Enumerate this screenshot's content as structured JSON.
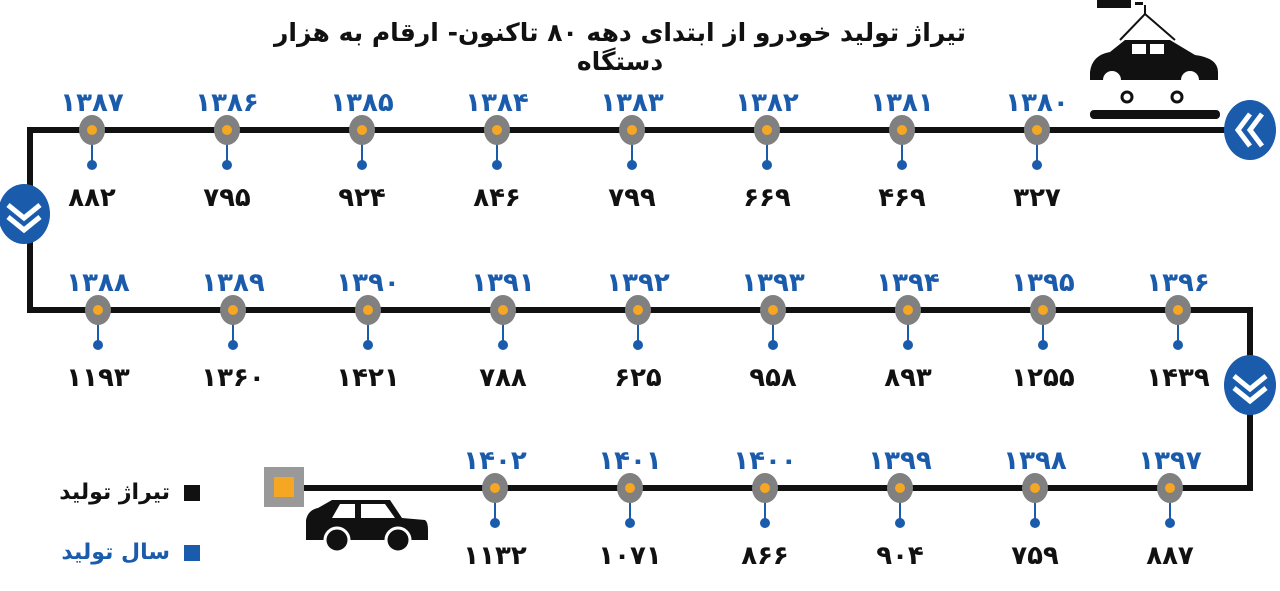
{
  "title": "تیراژ تولید خودرو از ابتدای دهه ۸۰ تاکنون- ارقام به هزار دستگاه",
  "legend": {
    "items": [
      {
        "label": "تیراژ تولید",
        "color": "#111111"
      },
      {
        "label": "سال تولید",
        "color": "#1a5bab"
      }
    ]
  },
  "colors": {
    "line": "#111111",
    "node_ring": "#808080",
    "node_center": "#f5a623",
    "stem": "#1a5bab",
    "chevron": "#1a5bab"
  },
  "icons": [
    "car-assembly-icon",
    "car-icon",
    "chevron-left-icon",
    "chevron-down-icon",
    "end-marker-icon"
  ],
  "chart_data": {
    "type": "timeline",
    "title": "تیراژ تولید خودرو از ابتدای دهه ۸۰ تاکنون- ارقام به هزار دستگاه",
    "unit": "هزار دستگاه",
    "years": [
      1380,
      1381,
      1382,
      1383,
      1384,
      1385,
      1386,
      1387,
      1388,
      1389,
      1390,
      1391,
      1392,
      1393,
      1394,
      1395,
      1396,
      1397,
      1398,
      1399,
      1400,
      1401,
      1402
    ],
    "year_labels": [
      "۱۳۸۰",
      "۱۳۸۱",
      "۱۳۸۲",
      "۱۳۸۳",
      "۱۳۸۴",
      "۱۳۸۵",
      "۱۳۸۶",
      "۱۳۸۷",
      "۱۳۸۸",
      "۱۳۸۹",
      "۱۳۹۰",
      "۱۳۹۱",
      "۱۳۹۲",
      "۱۳۹۳",
      "۱۳۹۴",
      "۱۳۹۵",
      "۱۳۹۶",
      "۱۳۹۷",
      "۱۳۹۸",
      "۱۳۹۹",
      "۱۴۰۰",
      "۱۴۰۱",
      "۱۴۰۲"
    ],
    "values": [
      327,
      469,
      669,
      799,
      846,
      924,
      795,
      882,
      1193,
      1360,
      1421,
      788,
      625,
      958,
      893,
      1255,
      1439,
      887,
      759,
      904,
      866,
      1071,
      1132
    ],
    "value_labels": [
      "۳۲۷",
      "۴۶۹",
      "۶۶۹",
      "۷۹۹",
      "۸۴۶",
      "۹۲۴",
      "۷۹۵",
      "۸۸۲",
      "۱۱۹۳",
      "۱۳۶۰",
      "۱۴۲۱",
      "۷۸۸",
      "۶۲۵",
      "۹۵۸",
      "۸۹۳",
      "۱۲۵۵",
      "۱۴۳۹",
      "۸۸۷",
      "۷۵۹",
      "۹۰۴",
      "۸۶۶",
      "۱۰۷۱",
      "۱۱۳۲"
    ]
  }
}
